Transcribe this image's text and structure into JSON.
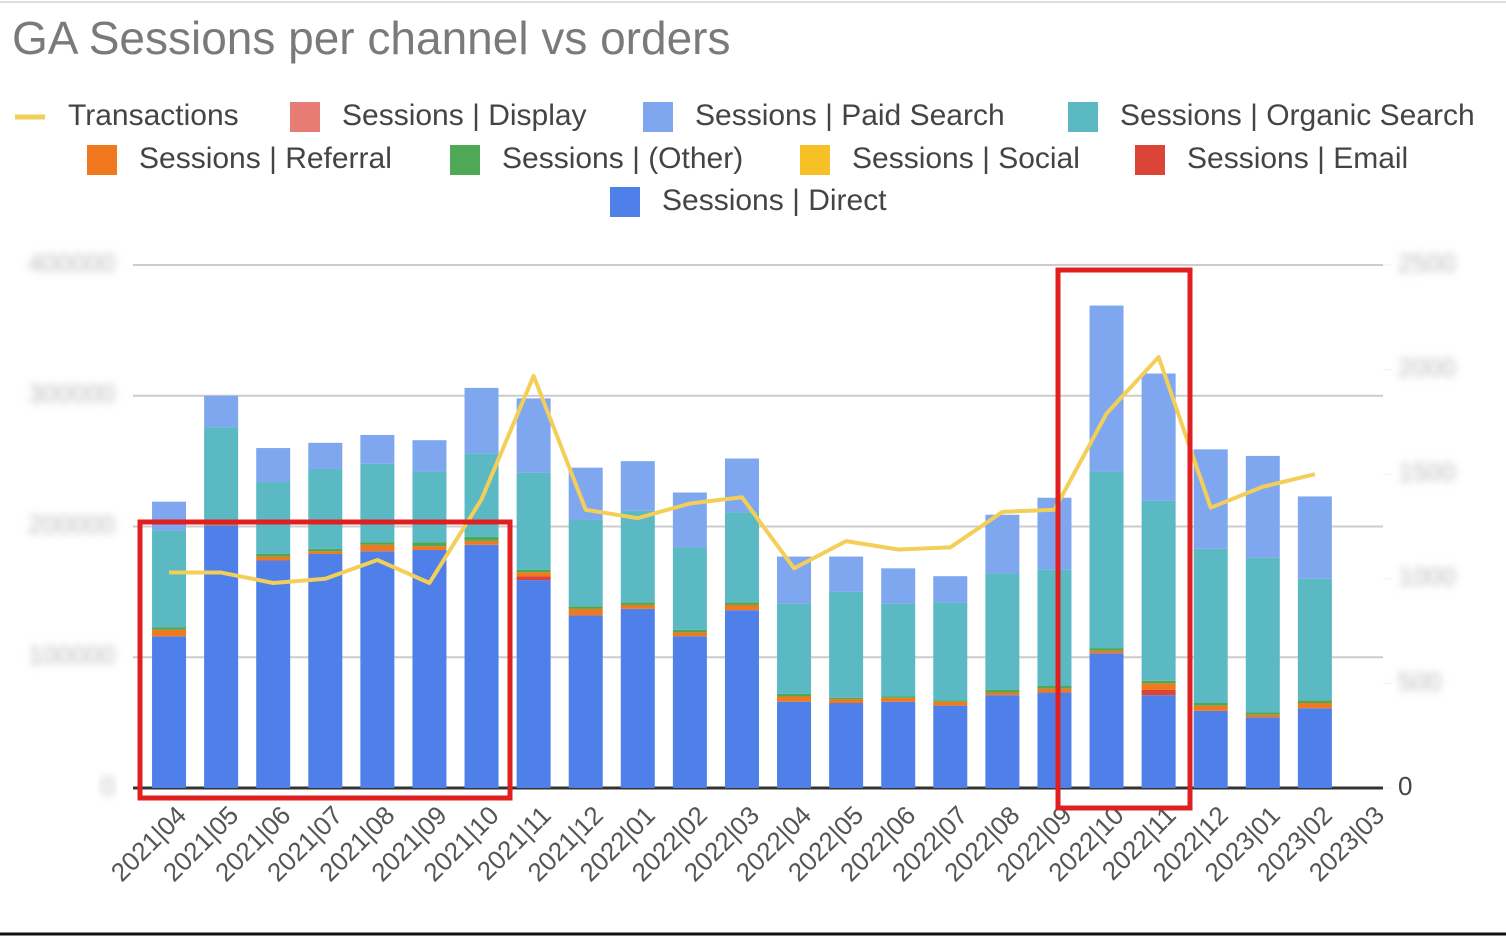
{
  "chart_data": {
    "type": "bar",
    "title": "GA Sessions per channel vs orders",
    "categories": [
      "2021|04",
      "2021|05",
      "2021|06",
      "2021|07",
      "2021|08",
      "2021|09",
      "2021|10",
      "2021|11",
      "2021|12",
      "2022|01",
      "2022|02",
      "2022|03",
      "2022|04",
      "2022|05",
      "2022|06",
      "2022|07",
      "2022|08",
      "2022|09",
      "2022|10",
      "2022|11",
      "2022|12",
      "2023|01",
      "2023|02",
      "2023|03"
    ],
    "series": [
      {
        "name": "Transactions",
        "type": "line",
        "axis": "y2",
        "color": "#f3cf5a",
        "values": [
          1030,
          1030,
          980,
          1000,
          1090,
          980,
          1380,
          1970,
          1330,
          1290,
          1360,
          1390,
          1050,
          1180,
          1140,
          1150,
          1320,
          1330,
          1790,
          2060,
          1340,
          1440,
          1500,
          null
        ]
      },
      {
        "name": "Sessions | Display",
        "color": "#e67c73",
        "values": [
          0,
          0,
          0,
          0,
          0,
          0,
          0,
          0,
          0,
          0,
          0,
          0,
          0,
          0,
          0,
          0,
          0,
          0,
          0,
          0,
          0,
          0,
          0,
          null
        ]
      },
      {
        "name": "Sessions | Paid Search",
        "color": "#7ea7f0",
        "values": [
          22000,
          24000,
          26000,
          20000,
          22000,
          24000,
          50000,
          57000,
          40000,
          38000,
          42000,
          41000,
          36000,
          27000,
          27000,
          20000,
          45000,
          55000,
          127000,
          97000,
          76000,
          78000,
          63000,
          null
        ]
      },
      {
        "name": "Sessions | Organic Search",
        "color": "#5bb9c4",
        "values": [
          74000,
          71000,
          55000,
          61000,
          60000,
          54000,
          64000,
          74000,
          66000,
          70000,
          63000,
          69000,
          69000,
          81000,
          71000,
          75000,
          89000,
          89000,
          135000,
          138000,
          118000,
          118000,
          93000,
          null
        ]
      },
      {
        "name": "Sessions | Referral",
        "color": "#f0781e",
        "values": [
          5000,
          2000,
          3000,
          2000,
          5000,
          3000,
          3000,
          3000,
          5000,
          3000,
          3000,
          4000,
          4000,
          3000,
          3000,
          3000,
          2000,
          3000,
          2000,
          5000,
          4000,
          2000,
          4000,
          null
        ]
      },
      {
        "name": "Sessions | (Other)",
        "color": "#4ea855",
        "values": [
          2000,
          2000,
          2000,
          2000,
          2000,
          3000,
          3000,
          2000,
          2000,
          2000,
          2000,
          2000,
          2000,
          1000,
          1000,
          1000,
          2000,
          2000,
          2000,
          2000,
          2000,
          2000,
          2000,
          null
        ]
      },
      {
        "name": "Sessions | Social",
        "color": "#f6c026",
        "values": [
          0,
          0,
          0,
          0,
          0,
          0,
          0,
          0,
          0,
          0,
          0,
          0,
          0,
          0,
          0,
          0,
          0,
          0,
          0,
          0,
          0,
          0,
          0,
          null
        ]
      },
      {
        "name": "Sessions | Email",
        "color": "#db4437",
        "values": [
          0,
          0,
          0,
          0,
          0,
          0,
          0,
          3000,
          0,
          0,
          0,
          0,
          0,
          0,
          0,
          0,
          0,
          0,
          0,
          4000,
          0,
          0,
          0,
          null
        ]
      },
      {
        "name": "Sessions | Direct",
        "color": "#4f7fe8",
        "values": [
          116000,
          201000,
          174000,
          179000,
          181000,
          182000,
          186000,
          159000,
          132000,
          137000,
          116000,
          136000,
          66000,
          65000,
          66000,
          63000,
          71000,
          73000,
          103000,
          71000,
          59000,
          54000,
          61000,
          null
        ]
      }
    ],
    "ylim": [
      0,
      400000
    ],
    "yticks": [
      0,
      100000,
      200000,
      300000,
      400000
    ],
    "y2lim": [
      0,
      2500
    ],
    "y2ticks": [
      0,
      500,
      1000,
      1500,
      2000,
      2500
    ],
    "grid": true
  }
}
